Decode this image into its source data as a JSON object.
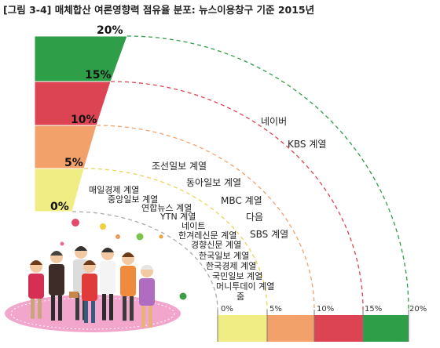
{
  "title": "[그림 3-4] 매체합산 여론영향력 점유율 분포: 뉴스이용창구 기준 2015년",
  "colors": {
    "green": "#2e9e48",
    "red": "#dc4453",
    "orange": "#f3a16a",
    "yellow": "#f0ed85",
    "grey_arc": "#aaaaaa"
  },
  "chart_data": {
    "type": "bar",
    "title": "[그림 3-4] 매체합산 여론영향력 점유율 분포: 뉴스이용창구 기준 2015년",
    "tiers": [
      {
        "range": [
          15,
          20
        ],
        "color": "#2e9e48",
        "outlets": [
          "네이버"
        ]
      },
      {
        "range": [
          10,
          15
        ],
        "color": "#dc4453",
        "outlets": [
          "KBS 계열"
        ]
      },
      {
        "range": [
          5,
          10
        ],
        "color": "#f3a16a",
        "outlets": [
          "조선일보 계열",
          "동아일보 계열",
          "MBC 계열",
          "다음",
          "SBS 계열"
        ]
      },
      {
        "range": [
          0,
          5
        ],
        "color": "#f0ed85",
        "outlets": [
          "매일경제 계열",
          "중앙일보 계열",
          "연합뉴스 계열",
          "YTN 계열",
          "네이트",
          "한겨레신문 계열",
          "경향신문 계열",
          "한국일보 계열",
          "한국경제 계열",
          "국민일보 계열",
          "머니투데이 계열",
          "줌"
        ]
      }
    ],
    "scale_labels": [
      "0%",
      "5%",
      "10%",
      "15%",
      "20%"
    ],
    "tier_labels": [
      "20%",
      "15%",
      "10%",
      "5%",
      "0%"
    ]
  }
}
